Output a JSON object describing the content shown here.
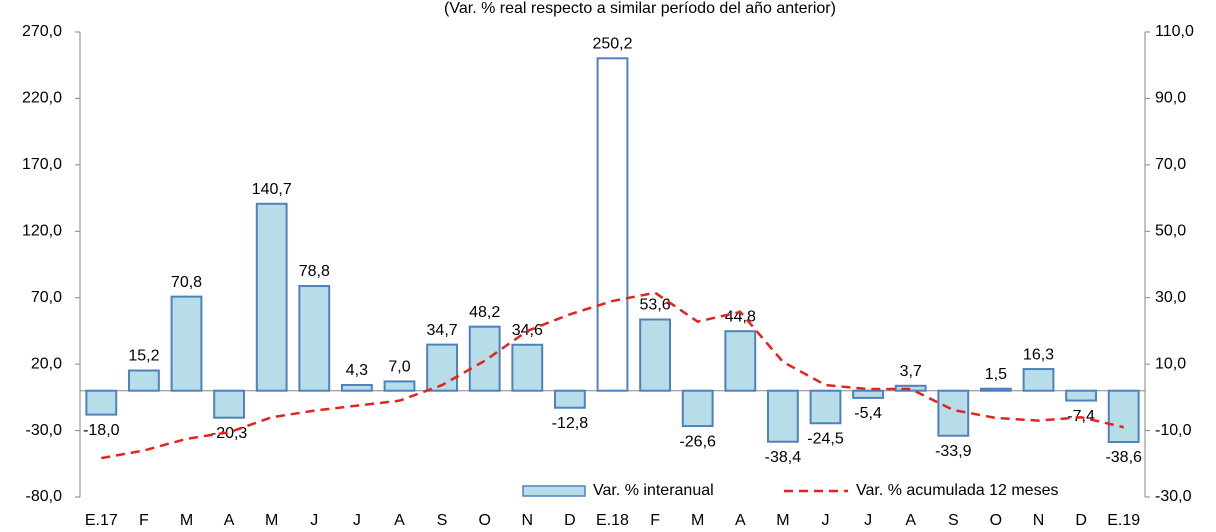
{
  "chart_data": {
    "type": "bar-line",
    "subtitle": "(Var. % real respecto a similar período del año anterior)",
    "categories": [
      "E.17",
      "F",
      "M",
      "A",
      "M",
      "J",
      "J",
      "A",
      "S",
      "O",
      "N",
      "D",
      "E.18",
      "F",
      "M",
      "A",
      "M",
      "J",
      "J",
      "A",
      "S",
      "O",
      "N",
      "D",
      "E.19"
    ],
    "series": [
      {
        "name": "Var. % interanual",
        "type": "bar",
        "color": "#b7dde8",
        "edge_color": "#4f81bd",
        "bar_colors": [
          "#b7dde8",
          "#b7dde8",
          "#b7dde8",
          "#b7dde8",
          "#b7dde8",
          "#b7dde8",
          "#b7dde8",
          "#b7dde8",
          "#b7dde8",
          "#b7dde8",
          "#b7dde8",
          "#b7dde8",
          "#ffffff",
          "#b7dde8",
          "#b7dde8",
          "#b7dde8",
          "#b7dde8",
          "#b7dde8",
          "#b7dde8",
          "#b7dde8",
          "#b7dde8",
          "#b7dde8",
          "#b7dde8",
          "#b7dde8",
          "#b7dde8"
        ],
        "values": [
          -18.0,
          15.2,
          70.8,
          -20.3,
          140.7,
          78.8,
          4.3,
          7.0,
          34.7,
          48.2,
          34.6,
          -12.8,
          250.2,
          53.6,
          -26.6,
          44.8,
          -38.4,
          -24.5,
          -5.4,
          3.7,
          -33.9,
          1.5,
          16.3,
          -7.4,
          -38.6
        ],
        "value_labels": [
          "-18,0",
          "15,2",
          "70,8",
          "-20,3",
          "140,7",
          "78,8",
          "4,3",
          "7,0",
          "34,7",
          "48,2",
          "34,6",
          "-12,8",
          "250,2",
          "53,6",
          "-26,6",
          "44,8",
          "-38,4",
          "-24,5",
          "-5,4",
          "3,7",
          "-33,9",
          "1,5",
          "16,3",
          "-7,4",
          "-38,6"
        ]
      },
      {
        "name": "Var. % acumulada 12 meses",
        "type": "line",
        "axis": "y2",
        "color": "#e8211d",
        "dashed": true,
        "values": [
          -18.3,
          -16,
          -12.5,
          -10.5,
          -6,
          -4,
          -2.5,
          -1,
          3.7,
          11,
          20,
          25,
          29,
          31.5,
          22.8,
          25.7,
          10.7,
          3.7,
          2.5,
          2.5,
          -3.8,
          -6.2,
          -7,
          -6,
          -9
        ]
      }
    ],
    "ylim": [
      -80,
      270
    ],
    "yticks": [
      {
        "value": -80,
        "label": "-80,0"
      },
      {
        "value": -30,
        "label": "-30,0"
      },
      {
        "value": 20,
        "label": "20,0"
      },
      {
        "value": 70,
        "label": "70,0"
      },
      {
        "value": 120,
        "label": "120,0"
      },
      {
        "value": 170,
        "label": "170,0"
      },
      {
        "value": 220,
        "label": "220,0"
      },
      {
        "value": 270,
        "label": "270,0"
      }
    ],
    "y2lim": [
      -30,
      110
    ],
    "y2ticks": [
      {
        "value": -30,
        "label": "-30,0"
      },
      {
        "value": -10,
        "label": "-10,0"
      },
      {
        "value": 10,
        "label": "10,0"
      },
      {
        "value": 30,
        "label": "30,0"
      },
      {
        "value": 50,
        "label": "50,0"
      },
      {
        "value": 70,
        "label": "70,0"
      },
      {
        "value": 90,
        "label": "90,0"
      },
      {
        "value": 110,
        "label": "110,0"
      }
    ],
    "legend": "bottom"
  }
}
